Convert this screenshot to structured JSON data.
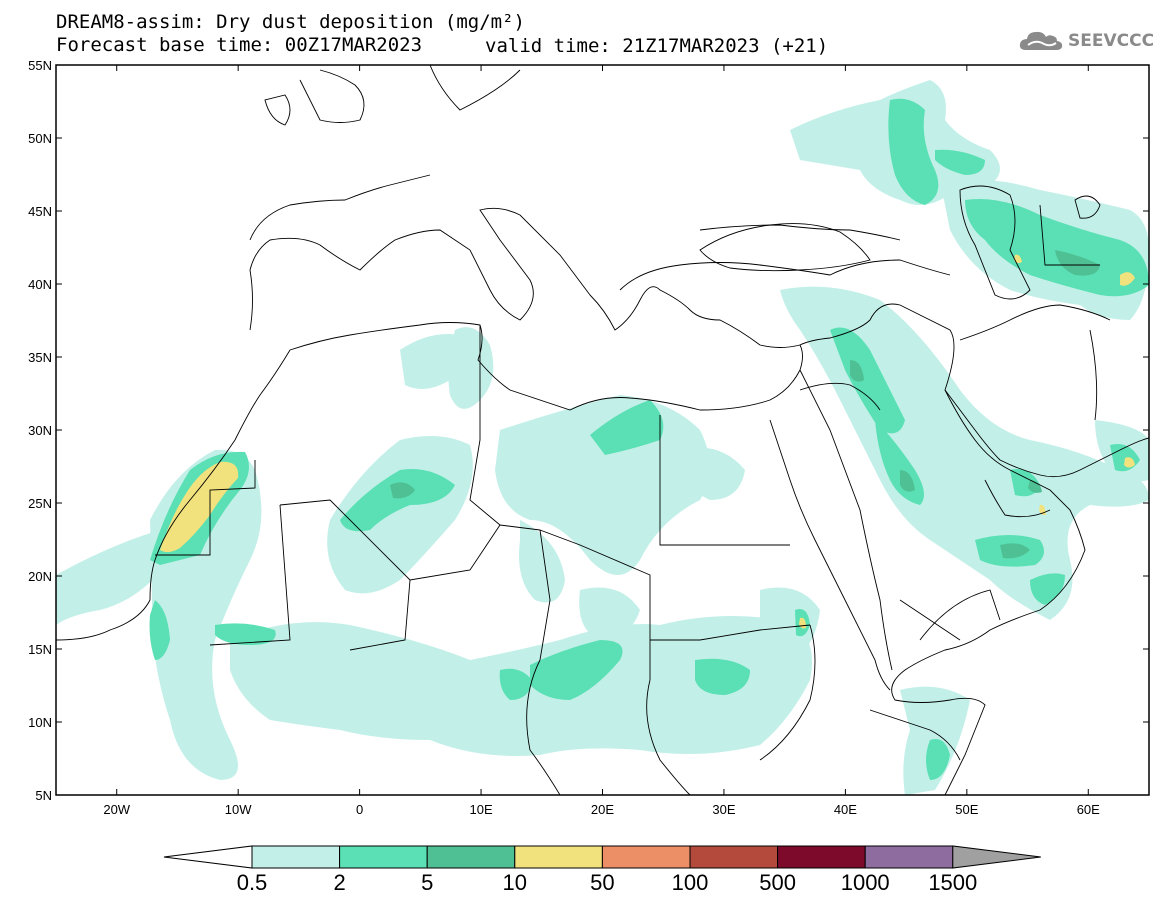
{
  "title_line1": "DREAM8-assim: Dry dust deposition (mg/m²)",
  "title_line2_left": "Forecast base time: 00Z17MAR2023",
  "title_line2_right": "valid time: 21Z17MAR2023 (+21)",
  "logo": {
    "text": "SEEVCCC",
    "icon": "cloud-icon"
  },
  "map": {
    "lon_range": [
      -25,
      65
    ],
    "lat_range": [
      5,
      55
    ],
    "lat_labels": [
      "55N",
      "50N",
      "45N",
      "40N",
      "35N",
      "30N",
      "25N",
      "20N",
      "15N",
      "10N",
      "5N"
    ],
    "lon_labels": [
      "20W",
      "10W",
      "0",
      "10E",
      "20E",
      "30E",
      "40E",
      "50E",
      "60E"
    ]
  },
  "legend": {
    "levels": [
      "0.5",
      "2",
      "5",
      "10",
      "50",
      "100",
      "500",
      "1000",
      "1500"
    ],
    "colors": [
      "#c2f0e8",
      "#5ae0b4",
      "#4fbf94",
      "#f2e27e",
      "#ec8e66",
      "#b44a3c",
      "#7d0a2a",
      "#8f6ca0"
    ],
    "under_color": "#ffffff",
    "over_color": "#a0a0a0"
  }
}
